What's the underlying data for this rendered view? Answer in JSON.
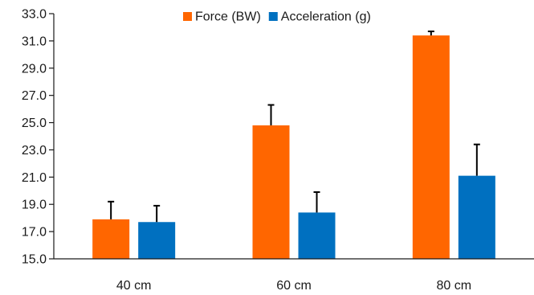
{
  "chart_data": {
    "type": "bar",
    "categories": [
      "40 cm",
      "60 cm",
      "80 cm"
    ],
    "series": [
      {
        "name": "Force (BW)",
        "color": "#FF6600",
        "values": [
          17.9,
          24.8,
          31.4
        ],
        "error": [
          1.3,
          1.5,
          0.3
        ]
      },
      {
        "name": "Acceleration (g)",
        "color": "#0070C0",
        "values": [
          17.7,
          18.4,
          21.1
        ],
        "error": [
          1.2,
          1.5,
          2.3
        ]
      }
    ],
    "ylim": [
      15.0,
      33.0
    ],
    "yticks": [
      "15.0",
      "17.0",
      "19.0",
      "21.0",
      "23.0",
      "25.0",
      "27.0",
      "29.0",
      "31.0",
      "33.0"
    ],
    "title": "",
    "xlabel": "",
    "ylabel": "",
    "legend": "top-center",
    "grid": false
  }
}
